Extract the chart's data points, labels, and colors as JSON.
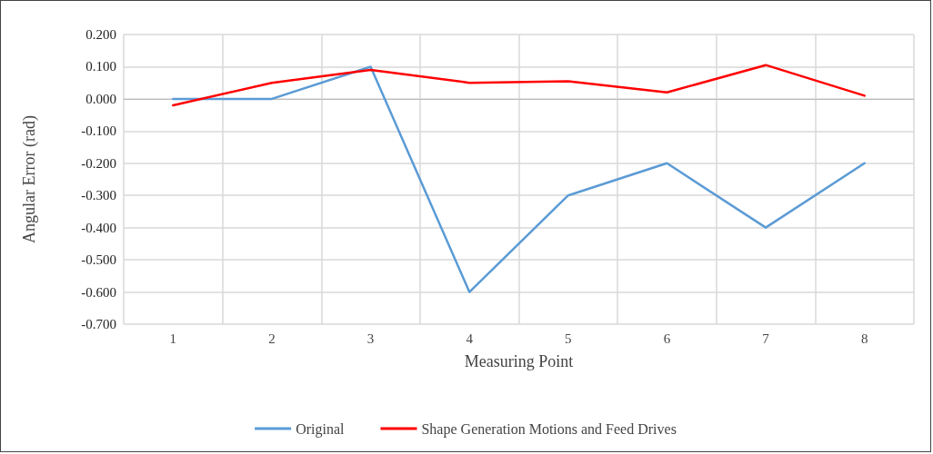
{
  "chart_data": {
    "type": "line",
    "xlabel": "Measuring Point",
    "ylabel": "Angular Error (rad)",
    "categories": [
      "1",
      "2",
      "3",
      "4",
      "5",
      "6",
      "7",
      "8"
    ],
    "series": [
      {
        "name": "Original",
        "color": "#5b9bd5",
        "values": [
          0,
          0,
          0.1,
          -0.6,
          -0.3,
          -0.2,
          -0.4,
          -0.2
        ]
      },
      {
        "name": "Shape Generation Motions and Feed Drives",
        "color": "#ff0000",
        "values": [
          -0.02,
          0.05,
          0.09,
          0.05,
          0.055,
          0.02,
          0.105,
          0.01
        ]
      }
    ],
    "ylim": [
      -0.7,
      0.2
    ],
    "yticks": [
      {
        "value": -0.7,
        "label": "-0.700"
      },
      {
        "value": -0.6,
        "label": "-0.600"
      },
      {
        "value": -0.5,
        "label": "-0.500"
      },
      {
        "value": -0.4,
        "label": "-0.400"
      },
      {
        "value": -0.3,
        "label": "-0.300"
      },
      {
        "value": -0.2,
        "label": "-0.200"
      },
      {
        "value": -0.1,
        "label": "-0.100"
      },
      {
        "value": 0,
        "label": "0.000"
      },
      {
        "value": 0.1,
        "label": "0.100"
      },
      {
        "value": 0.2,
        "label": "0.200"
      }
    ],
    "grid": true,
    "legend": "bottom",
    "marker": "none",
    "line_style": "solid"
  }
}
